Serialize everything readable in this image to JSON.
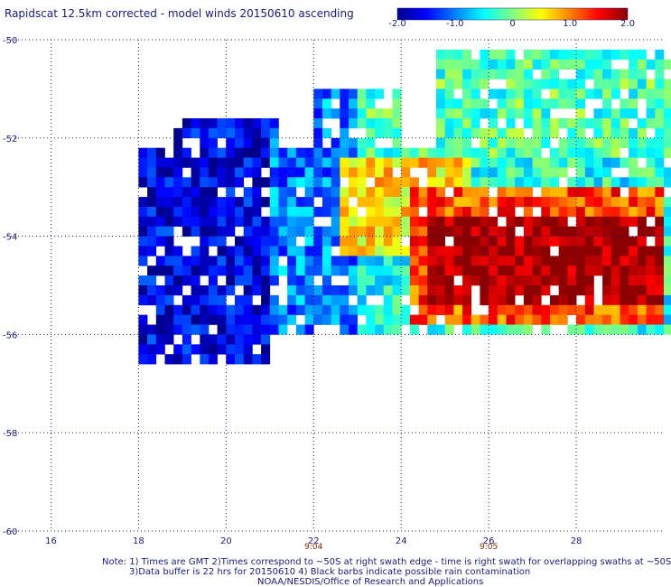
{
  "title": "Rapidscat 12.5km corrected - model winds 20150610 ascending",
  "colorbar": {
    "min": -2.0,
    "max": 2.0,
    "tick_labels": [
      "-2.0",
      "-1.0",
      "0",
      "1.0",
      "2.0"
    ],
    "tick_values": [
      -2.0,
      -1.0,
      0,
      1.0,
      2.0
    ],
    "colors": [
      "#00008b",
      "#0000ff",
      "#0080ff",
      "#00ffff",
      "#80ff80",
      "#ffff00",
      "#ff8000",
      "#ff0000",
      "#8b0000"
    ]
  },
  "chart_data": {
    "type": "heatmap",
    "title": "Rapidscat 12.5km corrected - model winds 20150610 ascending",
    "xlim": [
      15,
      30
    ],
    "ylim": [
      -60,
      -50
    ],
    "x_ticks": [
      16,
      18,
      20,
      22,
      24,
      26,
      28
    ],
    "x_tick_labels": [
      "16",
      "18",
      "20",
      "22",
      "24",
      "26",
      "28"
    ],
    "y_ticks": [
      -50,
      -52,
      -54,
      -56,
      -58,
      -60
    ],
    "y_tick_labels": [
      "-50",
      "-52",
      "-54",
      "-56",
      "-58",
      "-60"
    ],
    "grid": true,
    "time_labels": [
      {
        "x": 22,
        "text": "9:04"
      },
      {
        "x": 26,
        "text": "9:05"
      }
    ],
    "approx_field": {
      "description_regions": [
        {
          "lon": [
            18,
            24
          ],
          "lat": [
            -56.5,
            -52
          ],
          "value": -1.3
        },
        {
          "lon": [
            24.5,
            30
          ],
          "lat": [
            -55.5,
            -53.5
          ],
          "value": 2.0
        },
        {
          "lon": [
            22,
            26
          ],
          "lat": [
            -54,
            -52.5
          ],
          "value": 0.5
        },
        {
          "lon": [
            25,
            30
          ],
          "lat": [
            -52,
            -50
          ],
          "value": -0.3
        }
      ]
    }
  },
  "notes": [
    "Note: 1) Times are GMT 2)Times correspond to ~50S at right swath edge - time is right swath for overlapping swaths at ~50S",
    "3)Data buffer is 22 hrs for 20150610 4) Black barbs indicate possible rain contamination",
    "NOAA/NESDIS/Office of Research and Applications"
  ]
}
